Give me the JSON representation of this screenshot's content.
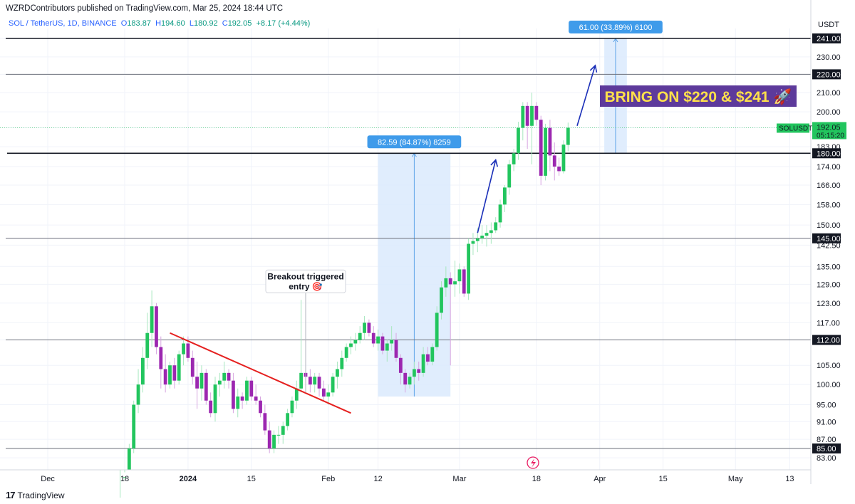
{
  "header": {
    "published": "WZRDContributors published on TradingView.com, Mar 25, 2024 18:44 UTC",
    "symbol": "SOL / TetherUS, 1D, BINANCE",
    "open_label": "O",
    "open": "183.87",
    "high_label": "H",
    "high": "194.60",
    "low_label": "L",
    "low": "180.92",
    "close_label": "C",
    "close": "192.05",
    "change": "+8.17 (+4.44%)"
  },
  "footer": {
    "brand": "TradingView",
    "logo": "17"
  },
  "colors": {
    "up": "#22c55e",
    "down": "#9c27b0",
    "trend": "#e5201f",
    "arrow": "#1a2fb8",
    "range": "#dbeafd",
    "label_bg": "#3f9bea",
    "banner_bg": "#5d3a9b",
    "banner_text": "#ffe14a",
    "price_label": "#22c55e"
  },
  "chart_data": {
    "type": "candlestick",
    "currency": "USDT",
    "y_ticks": [
      83,
      87,
      91,
      95,
      100,
      105,
      112,
      117,
      123,
      129,
      135,
      142.5,
      150,
      158,
      166,
      174,
      183,
      192.05,
      200,
      210,
      220,
      230,
      241
    ],
    "y_tick_labels": [
      "83.00",
      "87.00",
      "91.00",
      "95.00",
      "100.00",
      "105.00",
      "112.00",
      "117.00",
      "123.00",
      "129.00",
      "135.00",
      "142.50",
      "150.00",
      "158.00",
      "166.00",
      "174.00",
      "183.00",
      "192.05",
      "200.00",
      "210.00",
      "220.00",
      "230.00",
      "241.00"
    ],
    "x_labels": [
      {
        "date": "2023-12-01",
        "label": "Dec",
        "bold": false
      },
      {
        "date": "2023-12-18",
        "label": "18",
        "bold": false
      },
      {
        "date": "2024-01-01",
        "label": "2024",
        "bold": true
      },
      {
        "date": "2024-01-15",
        "label": "15",
        "bold": false
      },
      {
        "date": "2024-02-01",
        "label": "Feb",
        "bold": false
      },
      {
        "date": "2024-02-12",
        "label": "12",
        "bold": false
      },
      {
        "date": "2024-03-01",
        "label": "Mar",
        "bold": false
      },
      {
        "date": "2024-03-18",
        "label": "18",
        "bold": false
      },
      {
        "date": "2024-04-01",
        "label": "Apr",
        "bold": false
      },
      {
        "date": "2024-04-15",
        "label": "15",
        "bold": false
      },
      {
        "date": "2024-05-01",
        "label": "May",
        "bold": false
      },
      {
        "date": "2024-05-13",
        "label": "13",
        "bold": false
      }
    ],
    "horizontal_levels": [
      {
        "value": 241,
        "label": "241.00",
        "weight": "bold"
      },
      {
        "value": 220,
        "label": "220.00",
        "weight": "thin"
      },
      {
        "value": 180,
        "label": "180.00",
        "weight": "bold",
        "from_date": "2023-11-22"
      },
      {
        "value": 145,
        "label": "145.00",
        "weight": "thin"
      },
      {
        "value": 112,
        "label": "112.00",
        "weight": "thin"
      },
      {
        "value": 85,
        "label": "85.00",
        "weight": "thin"
      }
    ],
    "last_price": {
      "symbol": "SOLUSDT",
      "price": "192.05",
      "countdown": "05:15:20",
      "value": 192.05
    },
    "ranges": [
      {
        "from_date": "2024-02-12",
        "to_date": "2024-02-28",
        "low": 97,
        "high": 180,
        "label": "82.59 (84.87%) 8259"
      },
      {
        "from_date": "2024-04-02",
        "to_date": "2024-04-07",
        "low": 180,
        "high": 241,
        "label": "61.00 (33.89%) 6100"
      }
    ],
    "annotations": [
      {
        "text_line1": "Breakout triggered",
        "text_line2": "entry 🎯",
        "date": "2024-01-27",
        "value": 124
      }
    ],
    "banner": "BRING ON $220 & $241 🚀",
    "trendline": {
      "start": {
        "date": "2023-12-28",
        "value": 114
      },
      "end": {
        "date": "2024-02-06",
        "value": 93
      }
    },
    "arrows": [
      {
        "start": {
          "date": "2024-03-05",
          "value": 147
        },
        "end": {
          "date": "2024-03-09",
          "value": 177
        }
      },
      {
        "start": {
          "date": "2024-03-27",
          "value": 193
        },
        "end": {
          "date": "2024-03-31",
          "value": 225
        }
      }
    ],
    "candles": [
      {
        "date": "2023-12-17",
        "o": 72,
        "h": 75,
        "l": 70,
        "c": 73
      },
      {
        "date": "2023-12-18",
        "o": 73,
        "h": 80,
        "l": 72,
        "c": 79
      },
      {
        "date": "2023-12-19",
        "o": 79,
        "h": 86,
        "l": 78,
        "c": 85
      },
      {
        "date": "2023-12-20",
        "o": 85,
        "h": 96,
        "l": 84,
        "c": 95
      },
      {
        "date": "2023-12-21",
        "o": 95,
        "h": 104,
        "l": 93,
        "c": 100
      },
      {
        "date": "2023-12-22",
        "o": 100,
        "h": 110,
        "l": 98,
        "c": 107
      },
      {
        "date": "2023-12-23",
        "o": 107,
        "h": 120,
        "l": 104,
        "c": 114
      },
      {
        "date": "2023-12-24",
        "o": 114,
        "h": 127,
        "l": 110,
        "c": 122
      },
      {
        "date": "2023-12-25",
        "o": 122,
        "h": 123,
        "l": 108,
        "c": 110
      },
      {
        "date": "2023-12-26",
        "o": 110,
        "h": 113,
        "l": 99,
        "c": 104
      },
      {
        "date": "2023-12-27",
        "o": 104,
        "h": 108,
        "l": 98,
        "c": 100
      },
      {
        "date": "2023-12-28",
        "o": 100,
        "h": 106,
        "l": 99,
        "c": 105
      },
      {
        "date": "2023-12-29",
        "o": 105,
        "h": 107,
        "l": 99,
        "c": 101
      },
      {
        "date": "2023-12-30",
        "o": 101,
        "h": 109,
        "l": 100,
        "c": 108
      },
      {
        "date": "2023-12-31",
        "o": 108,
        "h": 113,
        "l": 105,
        "c": 111
      },
      {
        "date": "2024-01-01",
        "o": 111,
        "h": 113,
        "l": 106,
        "c": 107
      },
      {
        "date": "2024-01-02",
        "o": 107,
        "h": 109,
        "l": 100,
        "c": 102
      },
      {
        "date": "2024-01-03",
        "o": 102,
        "h": 106,
        "l": 94,
        "c": 99
      },
      {
        "date": "2024-01-04",
        "o": 99,
        "h": 105,
        "l": 96,
        "c": 103
      },
      {
        "date": "2024-01-05",
        "o": 103,
        "h": 104,
        "l": 95,
        "c": 96
      },
      {
        "date": "2024-01-06",
        "o": 96,
        "h": 98,
        "l": 92,
        "c": 93
      },
      {
        "date": "2024-01-07",
        "o": 93,
        "h": 102,
        "l": 91,
        "c": 100
      },
      {
        "date": "2024-01-08",
        "o": 100,
        "h": 103,
        "l": 97,
        "c": 101
      },
      {
        "date": "2024-01-09",
        "o": 101,
        "h": 106,
        "l": 99,
        "c": 103
      },
      {
        "date": "2024-01-10",
        "o": 103,
        "h": 104,
        "l": 99,
        "c": 101
      },
      {
        "date": "2024-01-11",
        "o": 101,
        "h": 103,
        "l": 93,
        "c": 94
      },
      {
        "date": "2024-01-12",
        "o": 94,
        "h": 99,
        "l": 92,
        "c": 97
      },
      {
        "date": "2024-01-13",
        "o": 97,
        "h": 98,
        "l": 94,
        "c": 96
      },
      {
        "date": "2024-01-14",
        "o": 96,
        "h": 102,
        "l": 95,
        "c": 101
      },
      {
        "date": "2024-01-15",
        "o": 101,
        "h": 102,
        "l": 96,
        "c": 97
      },
      {
        "date": "2024-01-16",
        "o": 97,
        "h": 100,
        "l": 95,
        "c": 96
      },
      {
        "date": "2024-01-17",
        "o": 96,
        "h": 97,
        "l": 92,
        "c": 93
      },
      {
        "date": "2024-01-18",
        "o": 93,
        "h": 95,
        "l": 88,
        "c": 89
      },
      {
        "date": "2024-01-19",
        "o": 89,
        "h": 91,
        "l": 84,
        "c": 85
      },
      {
        "date": "2024-01-20",
        "o": 85,
        "h": 89,
        "l": 84,
        "c": 88
      },
      {
        "date": "2024-01-21",
        "o": 88,
        "h": 90,
        "l": 86,
        "c": 88
      },
      {
        "date": "2024-01-22",
        "o": 88,
        "h": 91,
        "l": 86,
        "c": 90
      },
      {
        "date": "2024-01-23",
        "o": 90,
        "h": 94,
        "l": 89,
        "c": 93
      },
      {
        "date": "2024-01-24",
        "o": 93,
        "h": 97,
        "l": 92,
        "c": 96
      },
      {
        "date": "2024-01-25",
        "o": 96,
        "h": 101,
        "l": 94,
        "c": 99
      },
      {
        "date": "2024-01-26",
        "o": 99,
        "h": 124,
        "l": 98,
        "c": 103
      },
      {
        "date": "2024-01-27",
        "o": 103,
        "h": 104,
        "l": 98,
        "c": 102
      },
      {
        "date": "2024-01-28",
        "o": 102,
        "h": 104,
        "l": 98,
        "c": 100
      },
      {
        "date": "2024-01-29",
        "o": 100,
        "h": 103,
        "l": 98,
        "c": 102
      },
      {
        "date": "2024-01-30",
        "o": 102,
        "h": 103,
        "l": 97,
        "c": 99
      },
      {
        "date": "2024-01-31",
        "o": 99,
        "h": 101,
        "l": 96,
        "c": 97
      },
      {
        "date": "2024-02-01",
        "o": 97,
        "h": 100,
        "l": 95,
        "c": 98
      },
      {
        "date": "2024-02-02",
        "o": 98,
        "h": 103,
        "l": 97,
        "c": 102
      },
      {
        "date": "2024-02-03",
        "o": 102,
        "h": 106,
        "l": 99,
        "c": 104
      },
      {
        "date": "2024-02-04",
        "o": 104,
        "h": 109,
        "l": 102,
        "c": 107
      },
      {
        "date": "2024-02-05",
        "o": 107,
        "h": 111,
        "l": 106,
        "c": 110
      },
      {
        "date": "2024-02-06",
        "o": 110,
        "h": 113,
        "l": 108,
        "c": 111
      },
      {
        "date": "2024-02-07",
        "o": 111,
        "h": 114,
        "l": 109,
        "c": 112
      },
      {
        "date": "2024-02-08",
        "o": 112,
        "h": 116,
        "l": 111,
        "c": 114
      },
      {
        "date": "2024-02-09",
        "o": 114,
        "h": 119,
        "l": 112,
        "c": 117
      },
      {
        "date": "2024-02-10",
        "o": 117,
        "h": 118,
        "l": 113,
        "c": 114
      },
      {
        "date": "2024-02-11",
        "o": 114,
        "h": 116,
        "l": 110,
        "c": 111
      },
      {
        "date": "2024-02-12",
        "o": 111,
        "h": 115,
        "l": 109,
        "c": 113
      },
      {
        "date": "2024-02-13",
        "o": 113,
        "h": 114,
        "l": 108,
        "c": 109
      },
      {
        "date": "2024-02-14",
        "o": 109,
        "h": 112,
        "l": 106,
        "c": 111
      },
      {
        "date": "2024-02-15",
        "o": 111,
        "h": 116,
        "l": 109,
        "c": 112
      },
      {
        "date": "2024-02-16",
        "o": 112,
        "h": 114,
        "l": 106,
        "c": 107
      },
      {
        "date": "2024-02-17",
        "o": 107,
        "h": 108,
        "l": 100,
        "c": 103
      },
      {
        "date": "2024-02-18",
        "o": 103,
        "h": 104,
        "l": 98,
        "c": 100
      },
      {
        "date": "2024-02-19",
        "o": 100,
        "h": 103,
        "l": 99,
        "c": 102
      },
      {
        "date": "2024-02-20",
        "o": 102,
        "h": 106,
        "l": 100,
        "c": 104
      },
      {
        "date": "2024-02-21",
        "o": 104,
        "h": 106,
        "l": 101,
        "c": 103
      },
      {
        "date": "2024-02-22",
        "o": 103,
        "h": 110,
        "l": 102,
        "c": 108
      },
      {
        "date": "2024-02-23",
        "o": 108,
        "h": 110,
        "l": 105,
        "c": 106
      },
      {
        "date": "2024-02-24",
        "o": 106,
        "h": 111,
        "l": 105,
        "c": 110
      },
      {
        "date": "2024-02-25",
        "o": 110,
        "h": 122,
        "l": 109,
        "c": 120
      },
      {
        "date": "2024-02-26",
        "o": 120,
        "h": 130,
        "l": 118,
        "c": 128
      },
      {
        "date": "2024-02-27",
        "o": 128,
        "h": 135,
        "l": 125,
        "c": 131
      },
      {
        "date": "2024-02-28",
        "o": 131,
        "h": 133,
        "l": 105,
        "c": 129
      },
      {
        "date": "2024-02-29",
        "o": 129,
        "h": 137,
        "l": 125,
        "c": 130
      },
      {
        "date": "2024-03-01",
        "o": 130,
        "h": 136,
        "l": 126,
        "c": 134
      },
      {
        "date": "2024-03-02",
        "o": 134,
        "h": 135,
        "l": 125,
        "c": 126
      },
      {
        "date": "2024-03-03",
        "o": 126,
        "h": 145,
        "l": 124,
        "c": 143
      },
      {
        "date": "2024-03-04",
        "o": 143,
        "h": 147,
        "l": 139,
        "c": 144
      },
      {
        "date": "2024-03-05",
        "o": 144,
        "h": 149,
        "l": 140,
        "c": 145
      },
      {
        "date": "2024-03-06",
        "o": 145,
        "h": 150,
        "l": 143,
        "c": 146
      },
      {
        "date": "2024-03-07",
        "o": 146,
        "h": 150,
        "l": 142,
        "c": 147
      },
      {
        "date": "2024-03-08",
        "o": 147,
        "h": 151,
        "l": 143,
        "c": 148
      },
      {
        "date": "2024-03-09",
        "o": 148,
        "h": 153,
        "l": 147,
        "c": 151
      },
      {
        "date": "2024-03-10",
        "o": 151,
        "h": 160,
        "l": 149,
        "c": 158
      },
      {
        "date": "2024-03-11",
        "o": 158,
        "h": 166,
        "l": 155,
        "c": 165
      },
      {
        "date": "2024-03-12",
        "o": 165,
        "h": 177,
        "l": 162,
        "c": 175
      },
      {
        "date": "2024-03-13",
        "o": 175,
        "h": 182,
        "l": 172,
        "c": 180
      },
      {
        "date": "2024-03-14",
        "o": 180,
        "h": 195,
        "l": 177,
        "c": 192
      },
      {
        "date": "2024-03-15",
        "o": 192,
        "h": 205,
        "l": 186,
        "c": 203
      },
      {
        "date": "2024-03-16",
        "o": 203,
        "h": 205,
        "l": 182,
        "c": 193
      },
      {
        "date": "2024-03-17",
        "o": 193,
        "h": 210,
        "l": 175,
        "c": 203
      },
      {
        "date": "2024-03-18",
        "o": 203,
        "h": 205,
        "l": 193,
        "c": 196
      },
      {
        "date": "2024-03-19",
        "o": 196,
        "h": 198,
        "l": 166,
        "c": 170
      },
      {
        "date": "2024-03-20",
        "o": 170,
        "h": 194,
        "l": 168,
        "c": 192
      },
      {
        "date": "2024-03-21",
        "o": 192,
        "h": 196,
        "l": 172,
        "c": 179
      },
      {
        "date": "2024-03-22",
        "o": 179,
        "h": 185,
        "l": 168,
        "c": 174
      },
      {
        "date": "2024-03-23",
        "o": 174,
        "h": 178,
        "l": 170,
        "c": 172
      },
      {
        "date": "2024-03-24",
        "o": 172,
        "h": 186,
        "l": 171,
        "c": 184
      },
      {
        "date": "2024-03-25",
        "o": 183.87,
        "h": 194.6,
        "l": 180.92,
        "c": 192.05
      }
    ]
  }
}
